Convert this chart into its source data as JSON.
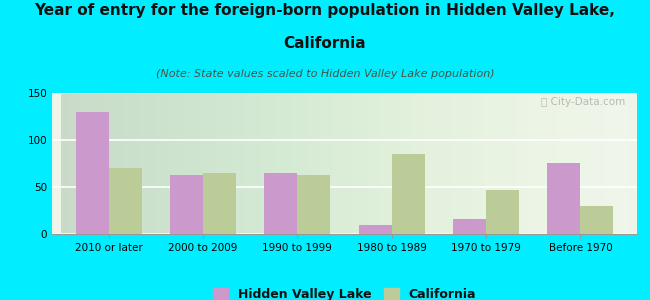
{
  "title_line1": "Year of entry for the foreign-born population in Hidden Valley Lake,",
  "title_line2": "California",
  "subtitle": "(Note: State values scaled to Hidden Valley Lake population)",
  "categories": [
    "2010 or later",
    "2000 to 2009",
    "1990 to 1999",
    "1980 to 1989",
    "1970 to 1979",
    "Before 1970"
  ],
  "hvl_values": [
    130,
    63,
    65,
    10,
    16,
    76
  ],
  "ca_values": [
    70,
    65,
    63,
    85,
    47,
    30
  ],
  "hvl_color": "#cc99cc",
  "ca_color": "#bbcc99",
  "background_outer": "#00eeff",
  "ylim": [
    0,
    150
  ],
  "yticks": [
    0,
    50,
    100,
    150
  ],
  "bar_width": 0.35,
  "legend_hvl": "Hidden Valley Lake",
  "legend_ca": "California",
  "watermark": "ⓘ City-Data.com",
  "title_fontsize": 11,
  "subtitle_fontsize": 8,
  "tick_fontsize": 7.5,
  "legend_fontsize": 9
}
